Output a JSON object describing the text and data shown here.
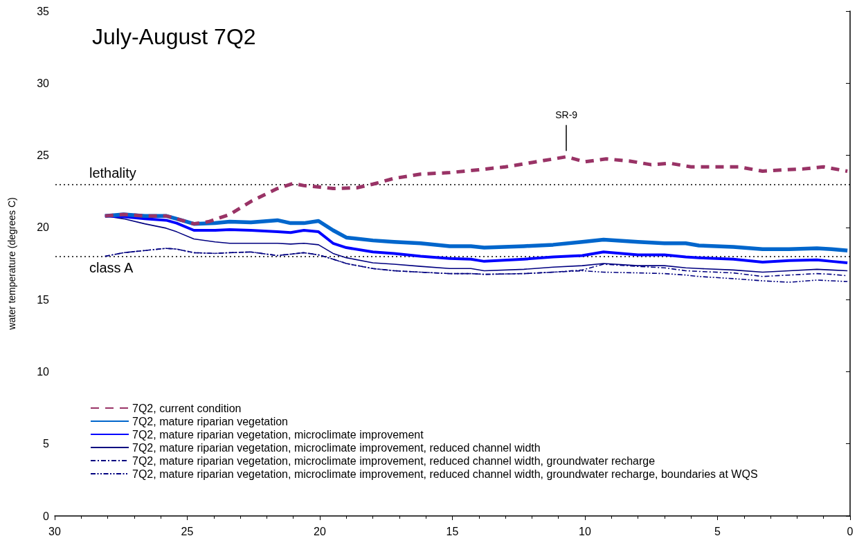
{
  "chart_data": {
    "type": "line",
    "title": "July-August 7Q2",
    "ylabel": "water temperature (degrees C)",
    "x": [
      28.1,
      27.4,
      26.6,
      25.8,
      25.4,
      24.75,
      23.95,
      23.4,
      22.6,
      21.6,
      21.1,
      20.6,
      20.05,
      19.5,
      19.0,
      18.0,
      17.2,
      16.2,
      15.1,
      14.3,
      13.8,
      12.3,
      11.2,
      10.1,
      9.3,
      8.0,
      7.0,
      6.2,
      5.7,
      4.4,
      3.3,
      2.3,
      1.25,
      0.7,
      0.1
    ],
    "series": [
      {
        "name": "7Q2, current condition",
        "color": "#993366",
        "line_style": "dashed",
        "x": [
          28.1,
          27.4,
          26.6,
          25.8,
          25.4,
          24.75,
          24.2,
          23.4,
          22.6,
          21.6,
          21.0,
          20.6,
          20.0,
          19.5,
          18.6,
          18.0,
          17.2,
          16.2,
          15.1,
          14.0,
          13.0,
          12.0,
          10.7,
          10.0,
          9.2,
          8.3,
          7.5,
          6.8,
          6.0,
          5.0,
          4.2,
          3.3,
          2.5,
          1.8,
          1.0,
          0.1
        ],
        "values": [
          20.8,
          20.9,
          20.8,
          20.8,
          20.6,
          20.25,
          20.4,
          20.9,
          21.8,
          22.7,
          23.05,
          22.9,
          22.8,
          22.7,
          22.75,
          23.0,
          23.4,
          23.7,
          23.8,
          24.0,
          24.2,
          24.5,
          24.9,
          24.55,
          24.75,
          24.6,
          24.35,
          24.45,
          24.2,
          24.2,
          24.2,
          23.9,
          24.0,
          24.05,
          24.2,
          23.9
        ]
      },
      {
        "name": "7Q2, mature riparian vegetation",
        "color": "#0066cc",
        "line_style": "solid",
        "values": [
          20.8,
          20.9,
          20.8,
          20.8,
          20.6,
          20.25,
          20.3,
          20.4,
          20.35,
          20.5,
          20.3,
          20.3,
          20.45,
          19.8,
          19.3,
          19.1,
          19.0,
          18.9,
          18.7,
          18.7,
          18.6,
          18.7,
          18.8,
          19.0,
          19.15,
          19.0,
          18.9,
          18.9,
          18.75,
          18.65,
          18.5,
          18.5,
          18.55,
          18.5,
          18.4
        ]
      },
      {
        "name": "7Q2, mature riparian vegetation, microclimate improvement",
        "color": "#0000ff",
        "line_style": "solid",
        "values": [
          20.8,
          20.75,
          20.6,
          20.5,
          20.3,
          19.8,
          19.8,
          19.85,
          19.8,
          19.7,
          19.65,
          19.8,
          19.7,
          18.9,
          18.6,
          18.3,
          18.2,
          18.0,
          17.85,
          17.8,
          17.65,
          17.8,
          17.95,
          18.05,
          18.3,
          18.1,
          18.1,
          17.95,
          17.9,
          17.8,
          17.6,
          17.7,
          17.75,
          17.65,
          17.55
        ]
      },
      {
        "name": "7Q2, mature riparian vegetation, microclimate improvement, reduced channel width",
        "color": "#000080",
        "line_style": "solid",
        "values": [
          20.8,
          20.6,
          20.25,
          19.95,
          19.7,
          19.2,
          19.0,
          18.9,
          18.9,
          18.9,
          18.85,
          18.9,
          18.8,
          18.2,
          17.9,
          17.55,
          17.45,
          17.3,
          17.15,
          17.15,
          17.0,
          17.1,
          17.25,
          17.35,
          17.5,
          17.35,
          17.35,
          17.2,
          17.15,
          17.05,
          16.9,
          17.0,
          17.1,
          17.05,
          17.0
        ]
      },
      {
        "name": "7Q2, mature riparian vegetation, microclimate improvement, reduced channel width, groundwater recharge",
        "color": "#000080",
        "line_style": "dashdot",
        "values": [
          18.0,
          18.25,
          18.4,
          18.55,
          18.5,
          18.25,
          18.2,
          18.25,
          18.3,
          18.05,
          18.15,
          18.25,
          18.1,
          17.8,
          17.5,
          17.15,
          17.0,
          16.9,
          16.8,
          16.8,
          16.75,
          16.8,
          16.9,
          17.05,
          17.45,
          17.3,
          17.2,
          17.0,
          16.95,
          16.85,
          16.6,
          16.7,
          16.8,
          16.75,
          16.65
        ]
      },
      {
        "name": "7Q2, mature riparian vegetation, microclimate improvement, reduced channel width, groundwater recharge, boundaries at WQS",
        "color": "#000080",
        "line_style": "dashdotdot",
        "values": [
          18.0,
          18.25,
          18.4,
          18.55,
          18.5,
          18.25,
          18.2,
          18.25,
          18.3,
          18.05,
          18.15,
          18.25,
          18.1,
          17.8,
          17.5,
          17.15,
          17.0,
          16.9,
          16.8,
          16.8,
          16.75,
          16.8,
          16.9,
          17.0,
          16.9,
          16.85,
          16.8,
          16.7,
          16.6,
          16.45,
          16.3,
          16.2,
          16.35,
          16.3,
          16.25
        ]
      }
    ],
    "xlim": [
      30,
      0
    ],
    "xticks": [
      30,
      25,
      20,
      15,
      10,
      5,
      0
    ],
    "ylim": [
      0,
      35
    ],
    "yticks": [
      0,
      5,
      10,
      15,
      20,
      25,
      30,
      35
    ],
    "ref_lines": [
      {
        "axis": "y",
        "value": 23,
        "label": "lethality",
        "color": "#000000",
        "line_style": "dotted"
      },
      {
        "axis": "y",
        "value": 18,
        "label": "class A",
        "color": "#000000",
        "line_style": "dotted"
      }
    ],
    "annotations": [
      {
        "text": "SR-9",
        "x": 10.7,
        "y": 24.9
      }
    ],
    "grid": false,
    "legend": "bottom left",
    "marker": "none"
  }
}
